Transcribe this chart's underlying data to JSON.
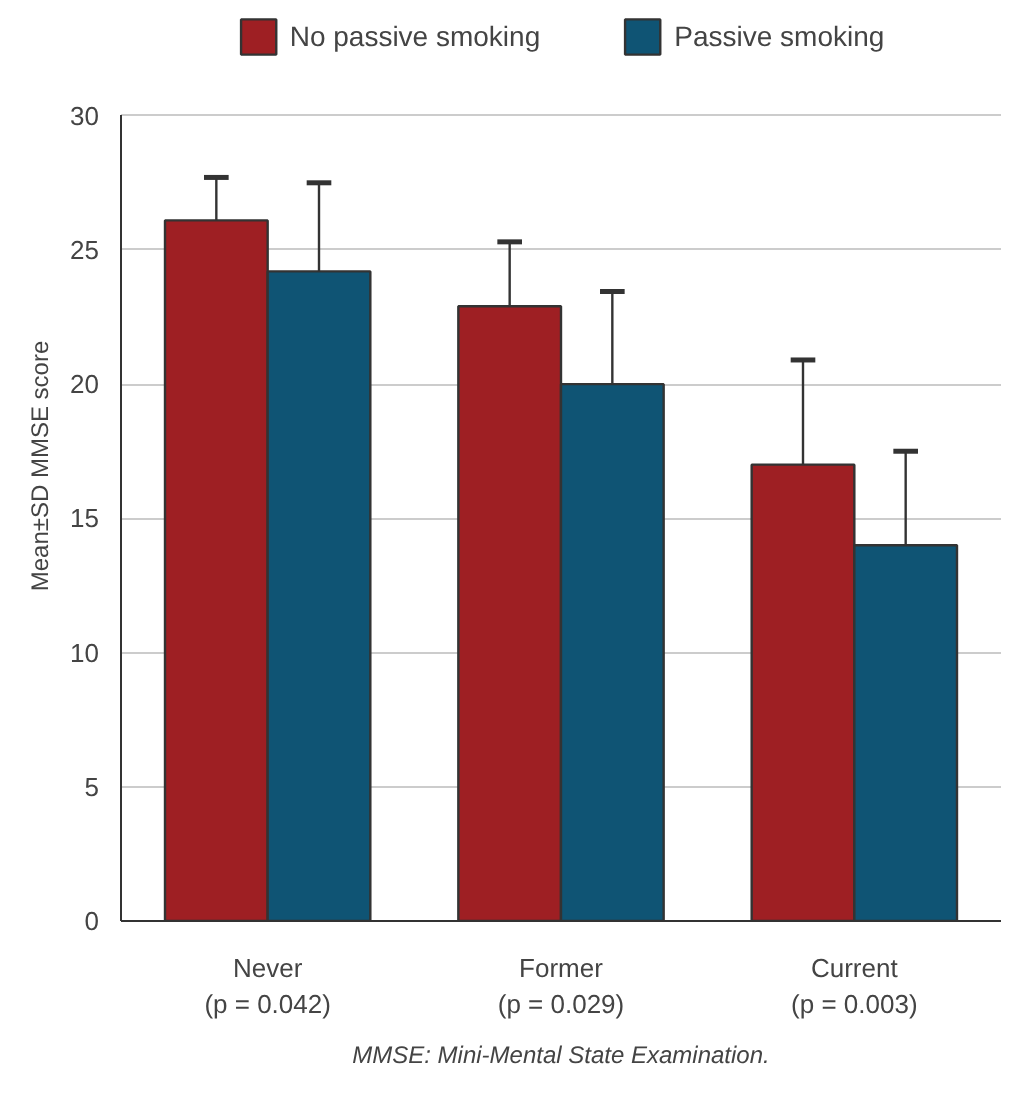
{
  "chart_data": {
    "type": "bar",
    "categories": [
      "Never\n(p = 0.042)",
      "Former\n(p = 0.029)",
      "Current\n(p = 0.003)"
    ],
    "ylabel": "Mean±SD MMSE score",
    "series": [
      {
        "name": "No passive smoking",
        "color": "#9e1f23",
        "values": [
          26.1,
          22.9,
          17.0
        ],
        "errors": [
          [
            26.1,
            27.7
          ],
          [
            22.9,
            25.3
          ],
          [
            17.0,
            20.9
          ]
        ]
      },
      {
        "name": "Passive smoking",
        "color": "#0f5474",
        "values": [
          24.2,
          20.0,
          14.0
        ],
        "errors": [
          [
            24.2,
            27.5
          ],
          [
            20.0,
            23.45
          ],
          [
            14.0,
            17.5
          ]
        ]
      }
    ],
    "ylim": [
      0,
      30
    ],
    "yticks": [
      0,
      5,
      10,
      15,
      20,
      25,
      30
    ],
    "grid": "y",
    "legend": "top",
    "annotations": [
      "MMSE: Mini-Mental State Examination."
    ]
  }
}
